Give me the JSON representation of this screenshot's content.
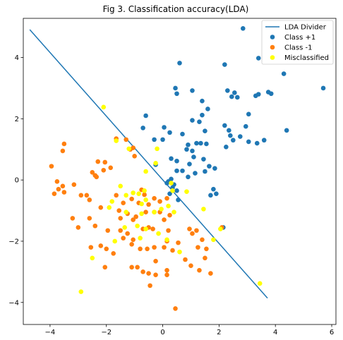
{
  "chart_data": {
    "type": "scatter",
    "title": "Fig 3. Classification accuracy(LDA)",
    "xlabel": "",
    "ylabel": "",
    "xlim": [
      -4.95,
      6.15
    ],
    "ylim": [
      -4.72,
      5.28
    ],
    "xticks": [
      -4,
      -2,
      0,
      2,
      4,
      6
    ],
    "yticks": [
      -4,
      -2,
      0,
      2,
      4
    ],
    "grid": false,
    "legend_position": "top-right",
    "colors": {
      "divider": "#1f77b4",
      "class_pos": "#1f77b4",
      "class_neg": "#ff7f0e",
      "misclassified": "#ffff00"
    },
    "divider": {
      "name": "LDA Divider",
      "x": [
        -4.72,
        3.72
      ],
      "y": [
        4.91,
        -3.86
      ]
    },
    "series": [
      {
        "name": "Class +1",
        "points": [
          [
            0.6,
            3.82
          ],
          [
            2.85,
            4.95
          ],
          [
            3.4,
            3.98
          ],
          [
            4.3,
            3.47
          ],
          [
            5.7,
            3.0
          ],
          [
            2.2,
            3.77
          ],
          [
            0.45,
            3.0
          ],
          [
            0.5,
            2.82
          ],
          [
            1.05,
            2.92
          ],
          [
            2.3,
            2.92
          ],
          [
            2.45,
            2.72
          ],
          [
            2.55,
            2.85
          ],
          [
            2.65,
            2.7
          ],
          [
            3.3,
            2.75
          ],
          [
            3.4,
            2.8
          ],
          [
            3.75,
            2.87
          ],
          [
            3.85,
            2.82
          ],
          [
            1.4,
            2.58
          ],
          [
            1.6,
            2.32
          ],
          [
            1.4,
            2.12
          ],
          [
            3.05,
            2.15
          ],
          [
            -0.6,
            2.1
          ],
          [
            1.05,
            1.95
          ],
          [
            1.3,
            1.9
          ],
          [
            2.2,
            1.78
          ],
          [
            1.5,
            1.6
          ],
          [
            2.35,
            1.62
          ],
          [
            -0.7,
            1.7
          ],
          [
            0.05,
            1.72
          ],
          [
            0.25,
            1.55
          ],
          [
            2.95,
            1.75
          ],
          [
            4.4,
            1.62
          ],
          [
            2.75,
            1.42
          ],
          [
            2.4,
            1.45
          ],
          [
            3.05,
            1.25
          ],
          [
            3.6,
            1.3
          ],
          [
            3.35,
            1.2
          ],
          [
            0.7,
            1.5
          ],
          [
            0.9,
            1.15
          ],
          [
            2.5,
            1.3
          ],
          [
            -0.3,
            1.32
          ],
          [
            0.0,
            1.32
          ],
          [
            1.2,
            1.2
          ],
          [
            1.35,
            1.2
          ],
          [
            1.55,
            1.18
          ],
          [
            2.25,
            1.08
          ],
          [
            0.85,
            1.0
          ],
          [
            1.05,
            0.95
          ],
          [
            1.1,
            0.75
          ],
          [
            1.45,
            0.68
          ],
          [
            0.3,
            0.7
          ],
          [
            0.5,
            0.62
          ],
          [
            0.95,
            0.52
          ],
          [
            -0.25,
            0.5
          ],
          [
            0.5,
            0.3
          ],
          [
            1.65,
            0.45
          ],
          [
            1.85,
            0.38
          ],
          [
            0.7,
            0.3
          ],
          [
            1.5,
            0.28
          ],
          [
            1.15,
            0.22
          ],
          [
            0.9,
            0.1
          ],
          [
            0.3,
            0.03
          ],
          [
            1.8,
            -0.3
          ],
          [
            1.7,
            -0.5
          ],
          [
            1.9,
            -0.45
          ],
          [
            0.5,
            -0.35
          ],
          [
            0.25,
            -0.45
          ],
          [
            2.15,
            -1.55
          ],
          [
            0.35,
            -0.25
          ],
          [
            0.15,
            -0.1
          ],
          [
            0.4,
            -0.15
          ],
          [
            0.55,
            -0.65
          ],
          [
            0.2,
            -0.05
          ]
        ]
      },
      {
        "name": "Class -1",
        "points": [
          [
            -3.5,
            1.18
          ],
          [
            -3.55,
            0.95
          ],
          [
            -1.65,
            1.35
          ],
          [
            -1.3,
            1.32
          ],
          [
            -1.15,
            1.0
          ],
          [
            -1.0,
            0.78
          ],
          [
            -1.05,
            1.05
          ],
          [
            -2.3,
            0.6
          ],
          [
            -2.05,
            0.58
          ],
          [
            -1.85,
            0.4
          ],
          [
            -2.1,
            0.32
          ],
          [
            -2.5,
            0.25
          ],
          [
            -2.4,
            0.15
          ],
          [
            -2.35,
            0.1
          ],
          [
            -3.95,
            0.45
          ],
          [
            -3.75,
            -0.05
          ],
          [
            -3.7,
            -0.3
          ],
          [
            -3.55,
            -0.2
          ],
          [
            -3.5,
            -0.4
          ],
          [
            -3.85,
            -0.45
          ],
          [
            -3.15,
            -0.15
          ],
          [
            -2.9,
            -0.5
          ],
          [
            -2.7,
            -0.5
          ],
          [
            -2.6,
            -0.65
          ],
          [
            -1.65,
            -0.5
          ],
          [
            -1.4,
            -0.75
          ],
          [
            -1.1,
            -0.62
          ],
          [
            -0.75,
            -0.32
          ],
          [
            -0.65,
            -0.48
          ],
          [
            -0.85,
            -0.75
          ],
          [
            -0.5,
            -0.8
          ],
          [
            -0.3,
            -0.6
          ],
          [
            -0.1,
            -0.7
          ],
          [
            0.15,
            -0.6
          ],
          [
            -1.55,
            -1.0
          ],
          [
            -1.25,
            -1.1
          ],
          [
            -1.05,
            -1.3
          ],
          [
            -0.6,
            -1.05
          ],
          [
            -0.3,
            -1.05
          ],
          [
            -0.1,
            -1.05
          ],
          [
            0.05,
            -1.3
          ],
          [
            0.25,
            -1.15
          ],
          [
            -3.2,
            -1.25
          ],
          [
            -2.6,
            -1.25
          ],
          [
            -2.4,
            -1.5
          ],
          [
            -3.0,
            -1.55
          ],
          [
            -1.95,
            -1.65
          ],
          [
            -1.5,
            -1.65
          ],
          [
            -1.25,
            -1.75
          ],
          [
            -1.05,
            -1.95
          ],
          [
            -0.7,
            -1.6
          ],
          [
            -0.5,
            -1.55
          ],
          [
            -0.35,
            -1.6
          ],
          [
            0.2,
            -1.65
          ],
          [
            0.95,
            -1.6
          ],
          [
            1.2,
            -1.65
          ],
          [
            1.05,
            -1.75
          ],
          [
            1.4,
            -1.95
          ],
          [
            -2.2,
            -2.15
          ],
          [
            -2.55,
            -2.2
          ],
          [
            -2.0,
            -2.25
          ],
          [
            -1.75,
            -2.4
          ],
          [
            -1.4,
            -1.9
          ],
          [
            -1.1,
            -2.1
          ],
          [
            -0.8,
            -2.25
          ],
          [
            -0.55,
            -2.25
          ],
          [
            -0.3,
            -2.2
          ],
          [
            0.05,
            -2.2
          ],
          [
            0.15,
            -2.0
          ],
          [
            0.55,
            -2.05
          ],
          [
            0.35,
            -2.3
          ],
          [
            1.55,
            -2.25
          ],
          [
            1.25,
            -2.2
          ],
          [
            1.5,
            -2.55
          ],
          [
            0.8,
            -2.6
          ],
          [
            -2.05,
            -2.85
          ],
          [
            -1.1,
            -2.85
          ],
          [
            -0.9,
            -2.85
          ],
          [
            -0.7,
            -3.0
          ],
          [
            -0.5,
            -3.05
          ],
          [
            -0.25,
            -2.65
          ],
          [
            -0.25,
            -3.1
          ],
          [
            0.15,
            -2.95
          ],
          [
            1.0,
            -2.8
          ],
          [
            1.3,
            -2.95
          ],
          [
            1.7,
            -3.05
          ],
          [
            2.1,
            -1.55
          ],
          [
            0.15,
            -3.1
          ],
          [
            -0.45,
            -3.45
          ],
          [
            0.45,
            -4.2
          ],
          [
            -1.5,
            -1.25
          ],
          [
            -2.2,
            -0.9
          ],
          [
            -0.95,
            -1.2
          ]
        ]
      },
      {
        "name": "Misclassified",
        "points": [
          [
            -2.1,
            2.38
          ],
          [
            -1.65,
            1.28
          ],
          [
            -1.2,
            1.02
          ],
          [
            -0.2,
            1.02
          ],
          [
            -0.6,
            0.28
          ],
          [
            -0.25,
            0.55
          ],
          [
            0.3,
            -0.1
          ],
          [
            0.35,
            -0.35
          ],
          [
            0.85,
            -0.38
          ],
          [
            -1.5,
            -0.2
          ],
          [
            -1.3,
            -0.5
          ],
          [
            -1.05,
            -0.42
          ],
          [
            -0.85,
            -0.45
          ],
          [
            -0.65,
            -0.35
          ],
          [
            -1.8,
            -0.7
          ],
          [
            -1.9,
            -0.9
          ],
          [
            -0.75,
            -0.78
          ],
          [
            -0.6,
            -0.65
          ],
          [
            -1.3,
            -1.05
          ],
          [
            -0.75,
            -1.1
          ],
          [
            -0.3,
            -1.05
          ],
          [
            -0.05,
            -0.95
          ],
          [
            0.2,
            -0.85
          ],
          [
            0.4,
            -1.05
          ],
          [
            1.45,
            -0.95
          ],
          [
            -1.35,
            -1.55
          ],
          [
            -0.9,
            -1.5
          ],
          [
            -0.6,
            -1.6
          ],
          [
            -0.15,
            -1.75
          ],
          [
            0.15,
            -1.95
          ],
          [
            -0.8,
            -1.9
          ],
          [
            -2.5,
            -2.55
          ],
          [
            -2.9,
            -3.65
          ],
          [
            0.6,
            -2.35
          ],
          [
            2.05,
            -1.6
          ],
          [
            1.8,
            -1.95
          ],
          [
            3.45,
            -3.38
          ],
          [
            -1.7,
            -2.0
          ]
        ]
      }
    ]
  }
}
